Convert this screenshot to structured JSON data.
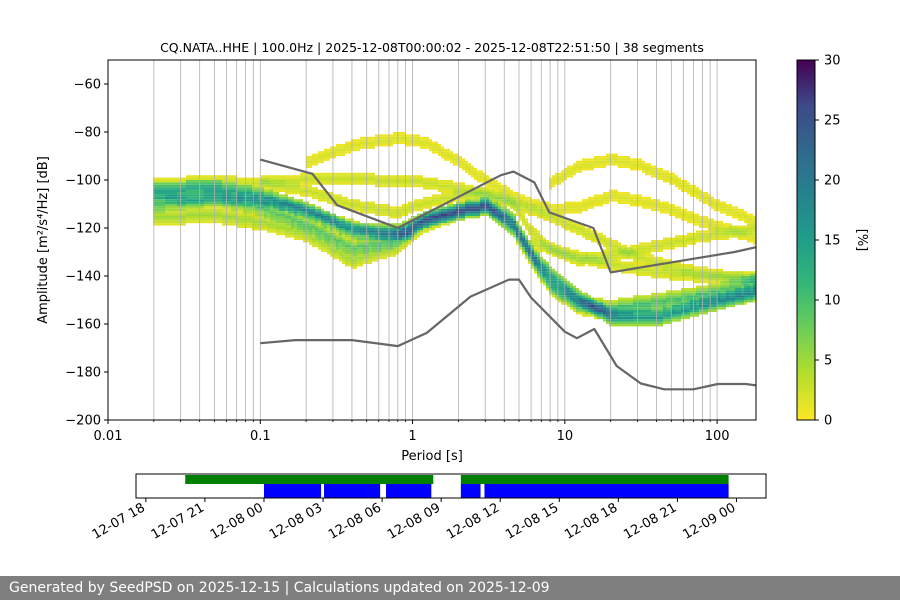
{
  "chart_data": [
    {
      "type": "heatmap",
      "title": "CQ.NATA..HHE | 100.0Hz | 2025-12-08T00:00:02 - 2025-12-08T22:51:50 | 38 segments",
      "xlabel": "Period [s]",
      "ylabel": "Amplitude [m²/s⁴/Hz] [dB]",
      "x_scale": "log",
      "xlim": [
        0.01,
        180
      ],
      "ylim": [
        -200,
        -50
      ],
      "x_ticks": [
        0.01,
        0.1,
        1,
        10,
        100
      ],
      "x_tick_labels": [
        "0.01",
        "0.1",
        "1",
        "10",
        "100"
      ],
      "y_ticks": [
        -200,
        -180,
        -160,
        -140,
        -120,
        -100,
        -80,
        -60
      ],
      "y_tick_labels": [
        "−200",
        "−180",
        "−160",
        "−140",
        "−120",
        "−100",
        "−80",
        "−60"
      ],
      "grid": "vertical log grid",
      "colorbar": {
        "label": "[%]",
        "range": [
          0,
          30
        ],
        "ticks": [
          0,
          5,
          10,
          15,
          20,
          25,
          30
        ],
        "tick_labels": [
          "0",
          "5",
          "10",
          "15",
          "20",
          "25",
          "30"
        ],
        "colormap": "viridis_r"
      },
      "reference_curves": [
        {
          "points": [
            [
              0.1,
              -91.5
            ],
            [
              0.22,
              -97.4
            ],
            [
              0.32,
              -110.5
            ],
            [
              0.8,
              -120.0
            ],
            [
              3.8,
              -98.0
            ],
            [
              4.6,
              -96.5
            ],
            [
              6.3,
              -101.0
            ],
            [
              7.9,
              -113.5
            ],
            [
              15.4,
              -120.0
            ],
            [
              20.0,
              -138.5
            ],
            [
              130.0,
              -130.0
            ],
            [
              180.0,
              -128.0
            ]
          ]
        },
        {
          "points": [
            [
              0.1,
              -168.0
            ],
            [
              0.17,
              -166.7
            ],
            [
              0.4,
              -166.7
            ],
            [
              0.8,
              -169.2
            ],
            [
              1.24,
              -163.7
            ],
            [
              2.4,
              -148.6
            ],
            [
              4.3,
              -141.5
            ],
            [
              5.0,
              -141.5
            ],
            [
              6.0,
              -149.0
            ],
            [
              10.0,
              -163.2
            ],
            [
              12.0,
              -165.9
            ],
            [
              15.6,
              -162.1
            ],
            [
              21.9,
              -177.5
            ],
            [
              31.6,
              -184.8
            ],
            [
              45.0,
              -187.2
            ],
            [
              70.0,
              -187.2
            ],
            [
              101.0,
              -185.0
            ],
            [
              154.0,
              -185.0
            ],
            [
              180.0,
              -185.6
            ]
          ]
        }
      ],
      "density_bands": [
        {
          "periods": [
            0.02,
            0.05,
            0.1,
            0.2,
            0.4,
            0.8,
            1.2,
            2,
            3,
            4.5,
            6,
            8,
            12,
            20,
            40,
            80,
            180
          ],
          "db": [
            -104,
            -103,
            -106,
            -112,
            -121,
            -121,
            -116,
            -112,
            -110,
            -116,
            -130,
            -139,
            -148,
            -157,
            -157,
            -152,
            -146
          ],
          "spread": 3,
          "percent": 14
        },
        {
          "periods": [
            0.02,
            0.05,
            0.1,
            0.2,
            0.4,
            0.8,
            1.2,
            2,
            3,
            4.5,
            6,
            8,
            12,
            20,
            40,
            80,
            180
          ],
          "db": [
            -110,
            -107,
            -111,
            -118,
            -128,
            -124,
            -116,
            -113,
            -111,
            -119,
            -132,
            -143,
            -151,
            -153,
            -150,
            -147,
            -142
          ],
          "spread": 3,
          "percent": 9
        },
        {
          "periods": [
            0.02,
            0.05,
            0.1,
            0.2,
            0.4,
            0.8,
            1.2,
            2,
            3,
            4.5,
            6,
            8,
            12,
            20,
            40,
            80,
            180
          ],
          "db": [
            -115,
            -114,
            -117,
            -122,
            -133,
            -127,
            -118,
            -113,
            -111,
            -119,
            -133,
            -144,
            -152,
            -155,
            -154,
            -150,
            -147
          ],
          "spread": 3,
          "percent": 5
        },
        {
          "periods": [
            0.02,
            0.05,
            0.1,
            0.2,
            0.4,
            0.8,
            1.2,
            2,
            3,
            4.5,
            6,
            8,
            12,
            20,
            40,
            80,
            180
          ],
          "db": [
            -101,
            -100,
            -101,
            -104,
            -110,
            -113,
            -109,
            -106,
            -105,
            -109,
            -121,
            -128,
            -133,
            -131,
            -127,
            -123,
            -120
          ],
          "spread": 2,
          "percent": 3
        },
        {
          "periods": [
            0.2,
            0.4,
            0.8,
            1.2,
            2,
            3,
            5,
            8,
            12,
            20,
            40,
            80,
            180
          ],
          "db": [
            -92,
            -85,
            -82,
            -84,
            -92,
            -100,
            -108,
            -112,
            -111,
            -106,
            -110,
            -117,
            -124
          ],
          "spread": 2,
          "percent": 2
        },
        {
          "periods": [
            8,
            12,
            20,
            30,
            50,
            100,
            180
          ],
          "db": [
            -101,
            -94,
            -91,
            -93,
            -99,
            -110,
            -117
          ],
          "spread": 2,
          "percent": 2
        },
        {
          "periods": [
            0.1,
            0.3,
            1,
            2,
            4,
            8,
            15,
            30,
            60,
            120,
            180
          ],
          "db": [
            -100,
            -99,
            -100,
            -103,
            -108,
            -115,
            -123,
            -132,
            -137,
            -140,
            -141
          ],
          "spread": 2,
          "percent": 3
        },
        {
          "periods": [
            6,
            10,
            20,
            40,
            80,
            180
          ],
          "db": [
            -126,
            -130,
            -135,
            -138,
            -140,
            -140
          ],
          "spread": 2,
          "percent": 3
        },
        {
          "periods": [
            0.02,
            0.04,
            0.08,
            0.15,
            0.3,
            0.6,
            1
          ],
          "db": [
            -107,
            -108,
            -108,
            -110,
            -116,
            -122,
            -122
          ],
          "spread": 2,
          "percent": 6
        }
      ]
    },
    {
      "type": "timeline",
      "x_tick_labels": [
        "12-07 18",
        "12-07 21",
        "12-08 00",
        "12-08 03",
        "12-08 06",
        "12-08 09",
        "12-08 12",
        "12-08 15",
        "12-08 18",
        "12-08 21",
        "12-09 00"
      ],
      "x_ticks_hours": [
        -6,
        -3,
        0,
        3,
        6,
        9,
        12,
        15,
        18,
        21,
        24
      ],
      "xlim_hours": [
        -6.5,
        25.5
      ],
      "green_segments": [
        [
          -4.0,
          8.6
        ],
        [
          10.0,
          23.6
        ]
      ],
      "blue_segments": [
        [
          0.0,
          2.9
        ],
        [
          3.05,
          5.9
        ],
        [
          6.2,
          8.5
        ],
        [
          10.0,
          11.0
        ],
        [
          11.2,
          23.6
        ]
      ],
      "colors": {
        "green": "#008000",
        "blue": "#0000ff"
      }
    }
  ],
  "footer": {
    "text": "Generated by SeedPSD on 2025-12-15 | Calculations updated on 2025-12-09"
  }
}
